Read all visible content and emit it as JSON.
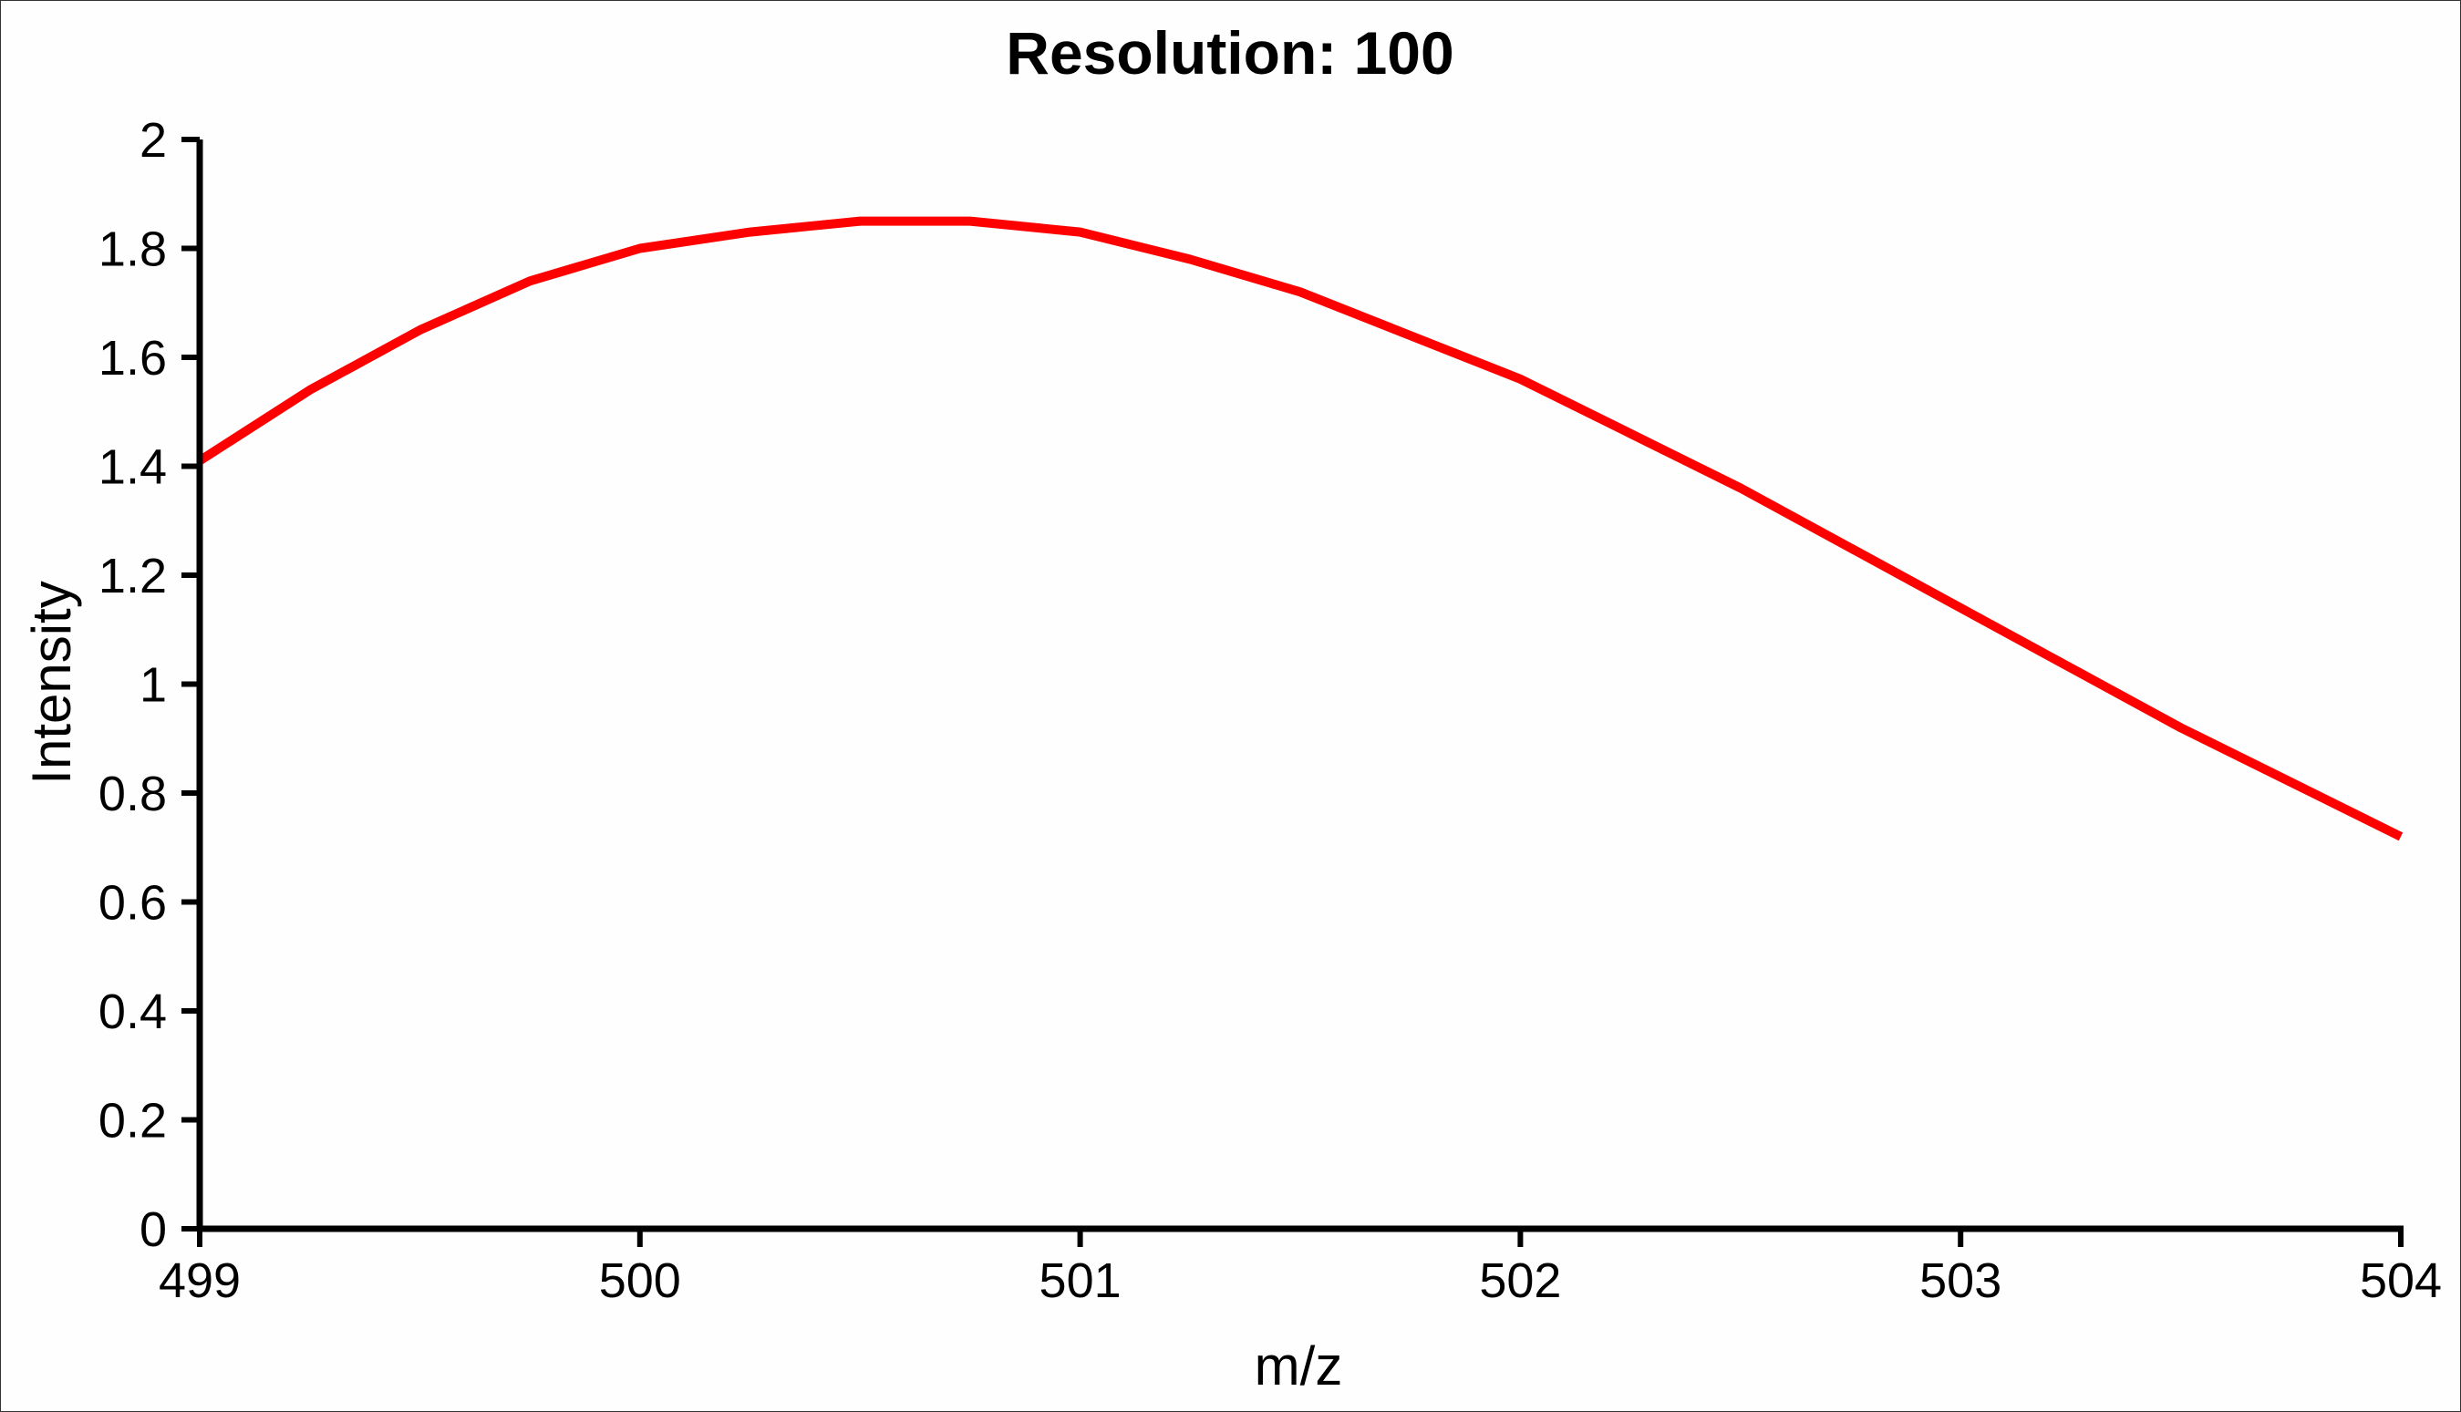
{
  "chart_data": {
    "type": "line",
    "title": "Resolution: 100",
    "xlabel": "m/z",
    "ylabel": "Intensity",
    "xlim": [
      499,
      504
    ],
    "ylim": [
      0,
      2
    ],
    "x_ticks": [
      "499",
      "500",
      "501",
      "502",
      "503",
      "504"
    ],
    "y_ticks": [
      "0",
      "0.2",
      "0.4",
      "0.6",
      "0.8",
      "1",
      "1.2",
      "1.4",
      "1.6",
      "1.8",
      "2"
    ],
    "grid": false,
    "legend": "none",
    "series": [
      {
        "color": "#ff0000",
        "x": [
          499.0,
          499.25,
          499.5,
          499.75,
          500.0,
          500.25,
          500.5,
          500.68,
          500.75,
          501.0,
          501.25,
          501.5,
          501.75,
          502.0,
          502.25,
          502.5,
          502.75,
          503.0,
          503.25,
          503.5,
          503.75,
          504.0
        ],
        "y": [
          1.41,
          1.54,
          1.65,
          1.74,
          1.8,
          1.83,
          1.85,
          1.85,
          1.85,
          1.83,
          1.78,
          1.72,
          1.64,
          1.56,
          1.46,
          1.36,
          1.25,
          1.14,
          1.03,
          0.92,
          0.82,
          0.72
        ]
      }
    ]
  }
}
